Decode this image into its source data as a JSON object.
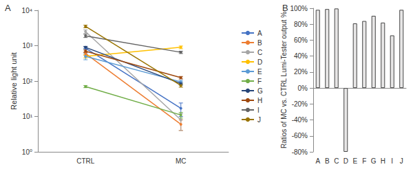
{
  "chart_data": [
    {
      "type": "line",
      "title": "A",
      "categories": [
        "CTRL",
        "MC"
      ],
      "y_label": "Relative light unit",
      "log": "y",
      "ylim": [
        1,
        10000
      ],
      "yticks": [
        {
          "value": 1,
          "label": "10⁰"
        },
        {
          "value": 10,
          "label": "10¹"
        },
        {
          "value": 100,
          "label": "10²"
        },
        {
          "value": 1000,
          "label": "10³"
        },
        {
          "value": 10000,
          "label": "10⁴"
        }
      ],
      "grid": false,
      "legend": "right",
      "marker": "circle",
      "series": [
        {
          "name": "A",
          "color": "#4472c4",
          "values": [
            850,
            17
          ],
          "errors": [
            80,
            7
          ]
        },
        {
          "name": "B",
          "color": "#ed7d31",
          "values": [
            600,
            6
          ],
          "errors": [
            60,
            2
          ]
        },
        {
          "name": "C",
          "color": "#a5a5a5",
          "values": [
            2500,
            8
          ],
          "errors": [
            300,
            4
          ]
        },
        {
          "name": "D",
          "color": "#ffc000",
          "values": [
            500,
            900
          ],
          "errors": [
            50,
            80
          ]
        },
        {
          "name": "E",
          "color": "#5b9bd5",
          "values": [
            500,
            95
          ],
          "errors": [
            100,
            10
          ]
        },
        {
          "name": "F",
          "color": "#70ad47",
          "values": [
            70,
            11
          ],
          "errors": [
            5,
            2
          ]
        },
        {
          "name": "G",
          "color": "#264478",
          "values": [
            900,
            85
          ],
          "errors": [
            60,
            8
          ]
        },
        {
          "name": "H",
          "color": "#9e480e",
          "values": [
            700,
            125
          ],
          "errors": [
            60,
            10
          ]
        },
        {
          "name": "I",
          "color": "#636363",
          "values": [
            1900,
            650
          ],
          "errors": [
            200,
            50
          ]
        },
        {
          "name": "J",
          "color": "#997300",
          "values": [
            3500,
            75
          ],
          "errors": [
            300,
            8
          ]
        }
      ]
    },
    {
      "type": "bar",
      "title": "B",
      "categories": [
        "A",
        "B",
        "C",
        "D",
        "E",
        "F",
        "G",
        "H",
        "I",
        "J"
      ],
      "values": [
        98,
        99,
        99.7,
        -80,
        81,
        84,
        90.5,
        82,
        66,
        98
      ],
      "color": "#e7e6e6",
      "y_label": "Ratios of MC vs. CTRL Lumi-Tester output %",
      "ylim": [
        -80,
        100
      ],
      "yticks": [
        {
          "value": -80,
          "label": "-80%"
        },
        {
          "value": -60,
          "label": "-60%"
        },
        {
          "value": -40,
          "label": "-40%"
        },
        {
          "value": -20,
          "label": "-20%"
        },
        {
          "value": 0,
          "label": "0%"
        },
        {
          "value": 20,
          "label": "20%"
        },
        {
          "value": 40,
          "label": "40%"
        },
        {
          "value": 60,
          "label": "60%"
        },
        {
          "value": 80,
          "label": "80%"
        },
        {
          "value": 100,
          "label": "100%"
        }
      ],
      "grid": false
    }
  ]
}
